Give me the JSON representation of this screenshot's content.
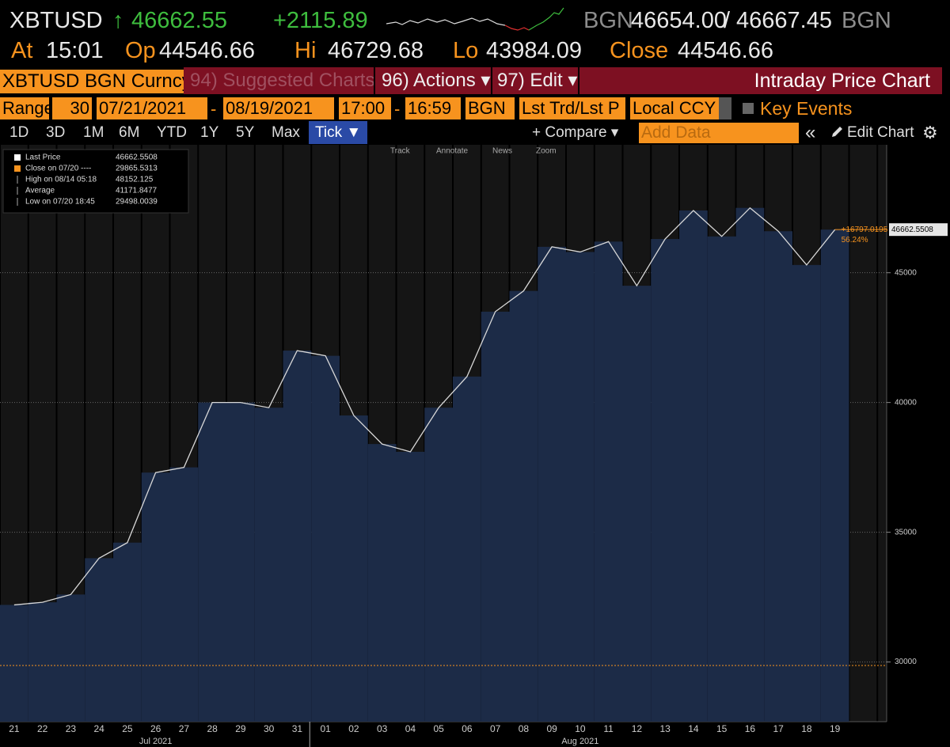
{
  "header": {
    "ticker": "XBTUSD",
    "arrow": "↑",
    "price": "46662.55",
    "change": "+2115.89",
    "bid_source": "BGN",
    "bid": "46654.00",
    "separator": "/",
    "ask": "46667.45",
    "ask_source": "BGN",
    "at_label": "At",
    "at": "15:01",
    "open_label": "Op",
    "open": "44546.66",
    "high_label": "Hi",
    "high": "46729.68",
    "low_label": "Lo",
    "low": "43984.09",
    "close_label": "Close",
    "close": "44546.66"
  },
  "toolbar": {
    "security": "XBTUSD BGN Curncy",
    "suggested": "94) Suggested Charts",
    "actions": "96) Actions ▾",
    "edit": "97) Edit ▾",
    "title": "Intraday Price Chart",
    "range_label": "Range",
    "range_days": "30",
    "start_date": "07/21/2021",
    "dash": "-",
    "end_date": "08/19/2021",
    "start_time": "17:00",
    "end_time": "16:59",
    "source": "BGN",
    "price_type": "Lst Trd/Lst P",
    "currency": "Local CCY",
    "key_events": "Key Events",
    "periods": [
      "1D",
      "3D",
      "1M",
      "6M",
      "YTD",
      "1Y",
      "5Y",
      "Max",
      "Tick ▼"
    ],
    "compare": "+ Compare ▾",
    "add_data": "Add Data",
    "collapse": "«",
    "edit_chart": "Edit Chart",
    "settings": "⚙",
    "chart_tools": [
      "Track",
      "Annotate",
      "News",
      "Zoom"
    ]
  },
  "chart_data": {
    "type": "bar",
    "categories": [
      "21",
      "22",
      "23",
      "24",
      "25",
      "26",
      "27",
      "28",
      "29",
      "30",
      "31",
      "01",
      "02",
      "03",
      "04",
      "05",
      "06",
      "07",
      "08",
      "09",
      "10",
      "11",
      "12",
      "13",
      "14",
      "15",
      "16",
      "17",
      "18",
      "19"
    ],
    "months": [
      {
        "label": "Jul 2021",
        "index": 5
      },
      {
        "label": "Aug 2021",
        "index": 20
      }
    ],
    "series": [
      {
        "name": "Last Price",
        "color": "#1c2b47",
        "values": [
          32200,
          32300,
          32600,
          34000,
          34600,
          37300,
          37500,
          40000,
          40000,
          39800,
          42000,
          41800,
          39500,
          38400,
          38100,
          39800,
          41000,
          43500,
          44300,
          46000,
          45800,
          46200,
          44500,
          46300,
          47400,
          46400,
          47500,
          46600,
          45300,
          46662.5508
        ]
      }
    ],
    "legend_stats": [
      {
        "label": "Last Price",
        "value": 46662.5508
      },
      {
        "label": "Close on 07/20 ----",
        "value": 29865.5313
      },
      {
        "label": "High on 08/14 05:18",
        "value": 48152.125
      },
      {
        "label": "Average",
        "value": 41171.8477
      },
      {
        "label": "Low on 07/20 18:45",
        "value": 29498.0039
      }
    ],
    "change_label": "+16797.0195",
    "change_pct_label": "56.24%",
    "ylim": [
      27700,
      49900
    ],
    "yticks": [
      30000,
      35000,
      40000,
      45000
    ],
    "grid": true,
    "reference_color": "#f7931e"
  }
}
